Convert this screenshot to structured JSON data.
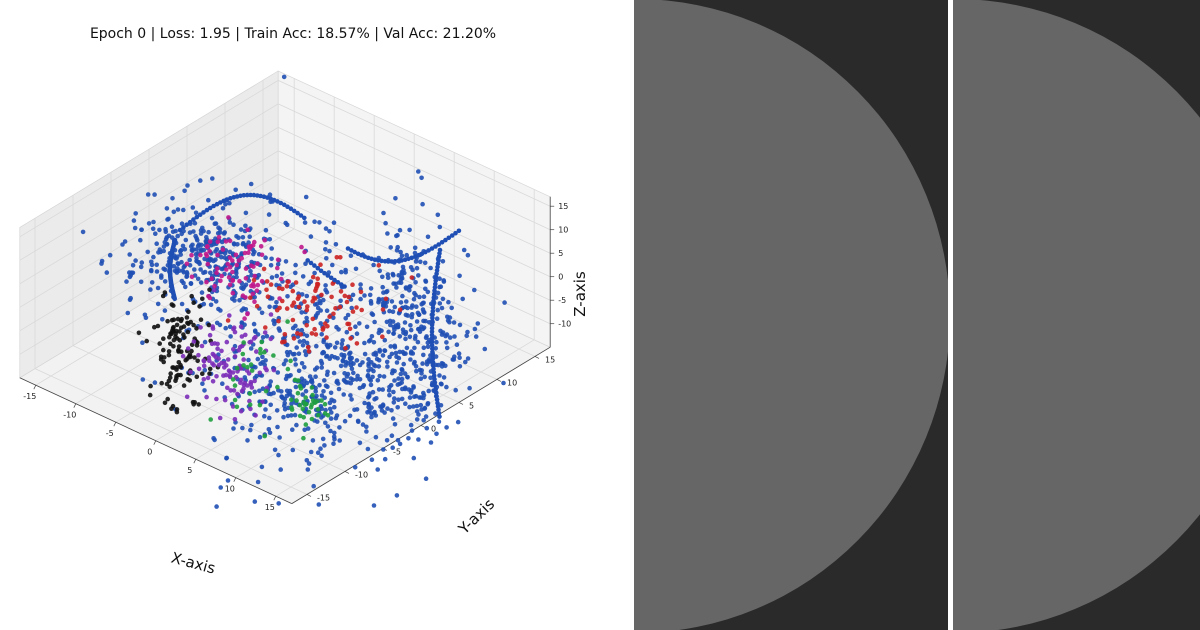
{
  "chart_data": {
    "type": "scatter",
    "title": "Epoch 0 | Loss: 1.95 | Train Acc: 18.57% | Val Acc: 21.20%",
    "xlabel": "X-axis",
    "ylabel": "Y-axis",
    "zlabel": "Z-axis",
    "x_ticks": [
      "-15",
      "-10",
      "-5",
      "0",
      "5",
      "10",
      "15"
    ],
    "y_ticks": [
      "-15",
      "-10",
      "-5",
      "0",
      "5",
      "10",
      "15"
    ],
    "z_ticks": [
      "-10",
      "-5",
      "0",
      "5",
      "10",
      "15"
    ],
    "xlim": [
      -17,
      17
    ],
    "ylim": [
      -17,
      17
    ],
    "zlim": [
      -15,
      17
    ],
    "grid": true,
    "series": [
      {
        "color": "#1f4fb4",
        "count": 1300
      },
      {
        "color": "#111111",
        "count": 120
      },
      {
        "color": "#7b2cb8",
        "count": 110
      },
      {
        "color": "#c0178c",
        "count": 80
      },
      {
        "color": "#cc2222",
        "count": 90
      },
      {
        "color": "#1e9e3e",
        "count": 60
      }
    ]
  },
  "panels": {
    "left_color": "#666666",
    "background_color": "#2a2a2a"
  }
}
